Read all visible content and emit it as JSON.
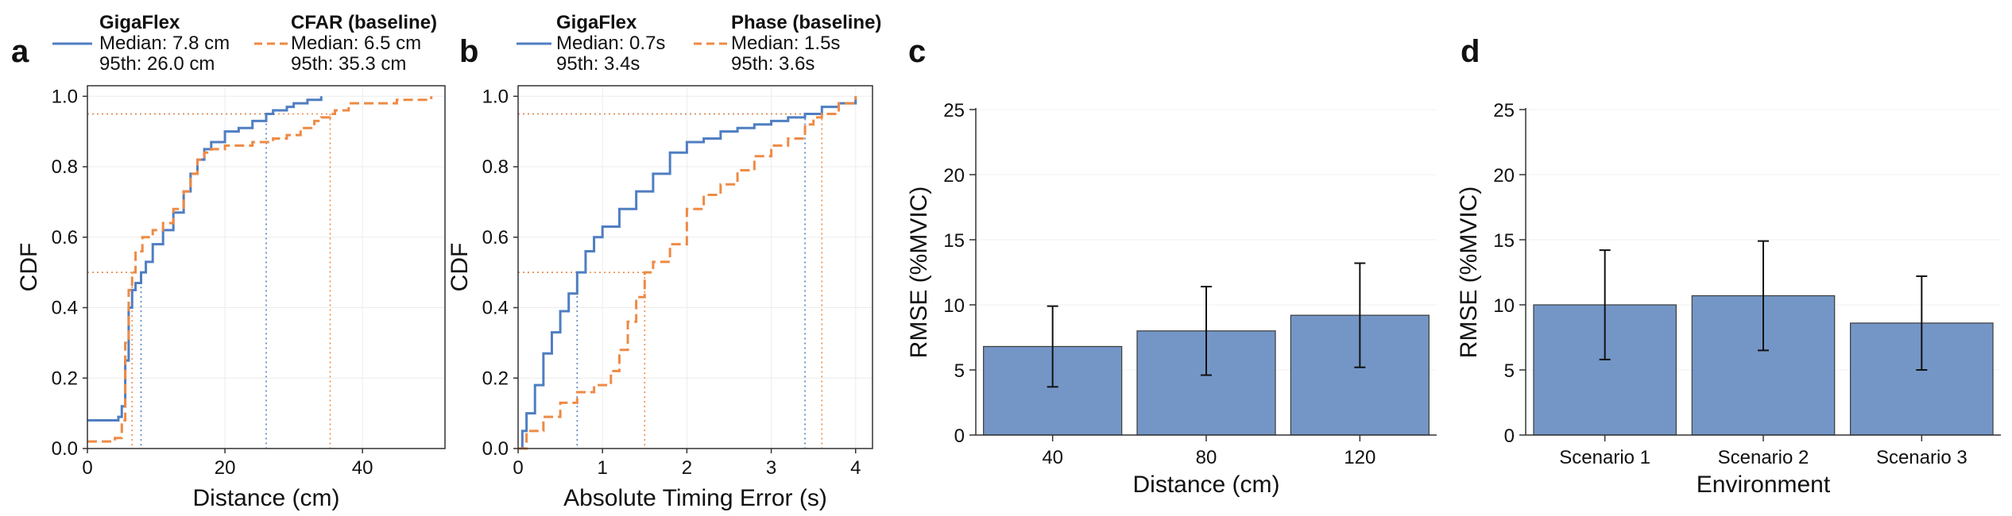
{
  "colors": {
    "blue": "#4f7ec2",
    "orange": "#ee8a45",
    "bar_fill": "#7496c6",
    "bar_edge": "#3a3a3a"
  },
  "panels": [
    {
      "letter": "a",
      "legend": [
        {
          "name": "GigaFlex",
          "median": "Median: 7.8 cm",
          "p95": "95th: 26.0 cm",
          "color": "blue",
          "style": "solid"
        },
        {
          "name": "CFAR (baseline)",
          "median": "Median: 6.5 cm",
          "p95": "95th: 35.3 cm",
          "color": "orange",
          "style": "dashed"
        }
      ]
    },
    {
      "letter": "b",
      "legend": [
        {
          "name": "GigaFlex",
          "median": "Median: 0.7s",
          "p95": "95th: 3.4s",
          "color": "blue",
          "style": "solid"
        },
        {
          "name": "Phase (baseline)",
          "median": "Median: 1.5s",
          "p95": "95th: 3.6s",
          "color": "orange",
          "style": "dashed"
        }
      ]
    },
    {
      "letter": "c"
    },
    {
      "letter": "d"
    }
  ],
  "chart_data": [
    {
      "type": "line",
      "panel": "a",
      "xlabel": "Distance (cm)",
      "ylabel": "CDF",
      "xlim": [
        0,
        52
      ],
      "ylim": [
        0,
        1.03
      ],
      "xticks": [
        "0",
        "20",
        "40"
      ],
      "yticks": [
        "0.0",
        "0.2",
        "0.4",
        "0.6",
        "0.8",
        "1.0"
      ],
      "grid": true,
      "series": [
        {
          "name": "GigaFlex",
          "color": "blue",
          "style": "solid",
          "x": [
            0,
            4.5,
            5.0,
            5.5,
            6.0,
            6.5,
            7.0,
            7.8,
            8.5,
            9.5,
            11,
            12.5,
            14,
            15,
            16,
            17,
            18,
            20,
            22,
            24,
            25,
            26,
            27,
            29,
            30,
            32,
            34
          ],
          "y": [
            0.08,
            0.09,
            0.12,
            0.25,
            0.4,
            0.45,
            0.47,
            0.5,
            0.53,
            0.58,
            0.62,
            0.67,
            0.73,
            0.78,
            0.82,
            0.85,
            0.87,
            0.9,
            0.91,
            0.93,
            0.93,
            0.95,
            0.96,
            0.97,
            0.98,
            0.99,
            1.0
          ]
        },
        {
          "name": "CFAR (baseline)",
          "color": "orange",
          "style": "dashed",
          "x": [
            0,
            4.0,
            5.0,
            5.5,
            6.0,
            6.5,
            7.0,
            8.0,
            9.5,
            11,
            12.5,
            14,
            15,
            16,
            17,
            18,
            20,
            22,
            24,
            26,
            27,
            29,
            31,
            33,
            34,
            35.3,
            36,
            38,
            40,
            45,
            50
          ],
          "y": [
            0.02,
            0.03,
            0.08,
            0.3,
            0.45,
            0.5,
            0.56,
            0.6,
            0.62,
            0.64,
            0.68,
            0.73,
            0.78,
            0.82,
            0.84,
            0.85,
            0.86,
            0.86,
            0.87,
            0.87,
            0.88,
            0.89,
            0.91,
            0.93,
            0.94,
            0.95,
            0.96,
            0.98,
            0.98,
            0.99,
            1.0
          ]
        }
      ],
      "reference_lines": [
        {
          "y": 0.5,
          "x": 7.8,
          "color": "blue"
        },
        {
          "y": 0.95,
          "x": 26.0,
          "color": "blue"
        },
        {
          "y": 0.5,
          "x": 6.5,
          "color": "orange"
        },
        {
          "y": 0.95,
          "x": 35.3,
          "color": "orange"
        }
      ]
    },
    {
      "type": "line",
      "panel": "b",
      "xlabel": "Absolute Timing Error (s)",
      "ylabel": "CDF",
      "xlim": [
        0,
        4.2
      ],
      "ylim": [
        0,
        1.03
      ],
      "xticks": [
        "0",
        "1",
        "2",
        "3",
        "4"
      ],
      "yticks": [
        "0.0",
        "0.2",
        "0.4",
        "0.6",
        "0.8",
        "1.0"
      ],
      "grid": true,
      "series": [
        {
          "name": "GigaFlex",
          "color": "blue",
          "style": "solid",
          "x": [
            0,
            0.05,
            0.1,
            0.2,
            0.3,
            0.4,
            0.5,
            0.6,
            0.7,
            0.8,
            0.9,
            1.0,
            1.2,
            1.4,
            1.6,
            1.8,
            2.0,
            2.2,
            2.4,
            2.6,
            2.8,
            3.0,
            3.2,
            3.4,
            3.6,
            3.8,
            4.0
          ],
          "y": [
            0,
            0.05,
            0.1,
            0.18,
            0.27,
            0.33,
            0.39,
            0.44,
            0.5,
            0.56,
            0.6,
            0.63,
            0.68,
            0.73,
            0.78,
            0.84,
            0.87,
            0.88,
            0.9,
            0.91,
            0.92,
            0.93,
            0.94,
            0.95,
            0.97,
            0.98,
            1.0
          ]
        },
        {
          "name": "Phase (baseline)",
          "color": "orange",
          "style": "dashed",
          "x": [
            0,
            0.1,
            0.3,
            0.5,
            0.7,
            0.9,
            1.1,
            1.2,
            1.3,
            1.4,
            1.5,
            1.6,
            1.8,
            2.0,
            2.2,
            2.4,
            2.6,
            2.8,
            3.0,
            3.2,
            3.4,
            3.5,
            3.6,
            3.8,
            4.0
          ],
          "y": [
            0,
            0.05,
            0.09,
            0.13,
            0.16,
            0.18,
            0.22,
            0.28,
            0.36,
            0.43,
            0.5,
            0.53,
            0.58,
            0.68,
            0.72,
            0.75,
            0.79,
            0.83,
            0.86,
            0.88,
            0.92,
            0.94,
            0.95,
            0.98,
            1.0
          ]
        }
      ],
      "reference_lines": [
        {
          "y": 0.5,
          "x": 0.7,
          "color": "blue"
        },
        {
          "y": 0.95,
          "x": 3.4,
          "color": "blue"
        },
        {
          "y": 0.5,
          "x": 1.5,
          "color": "orange"
        },
        {
          "y": 0.95,
          "x": 3.6,
          "color": "orange"
        }
      ]
    },
    {
      "type": "bar",
      "panel": "c",
      "categories": [
        "40",
        "80",
        "120"
      ],
      "values": [
        6.8,
        8.0,
        9.2
      ],
      "errors": [
        3.1,
        3.4,
        4.0
      ],
      "xlabel": "Distance (cm)",
      "ylabel": "RMSE (%MVIC)",
      "ylim": [
        0,
        25
      ],
      "yticks": [
        "0",
        "5",
        "10",
        "15",
        "20",
        "25"
      ],
      "grid": true
    },
    {
      "type": "bar",
      "panel": "d",
      "categories": [
        "Scenario 1",
        "Scenario 2",
        "Scenario 3"
      ],
      "values": [
        10.0,
        10.7,
        8.6
      ],
      "errors": [
        4.2,
        4.2,
        3.6
      ],
      "xlabel": "Environment",
      "ylabel": "RMSE (%MVIC)",
      "ylim": [
        0,
        25
      ],
      "yticks": [
        "0",
        "5",
        "10",
        "15",
        "20",
        "25"
      ],
      "grid": true
    }
  ]
}
